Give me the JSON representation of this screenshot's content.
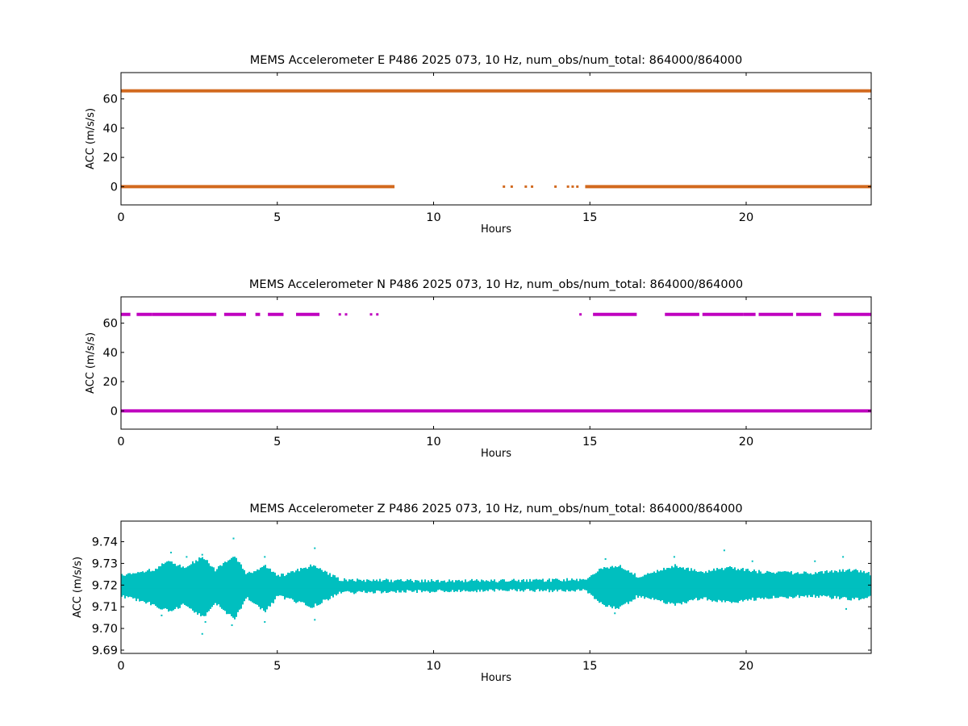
{
  "chart_data": [
    {
      "type": "scatter",
      "title": "MEMS Accelerometer E P486 2025 073, 10 Hz, num_obs/num_total: 864000/864000",
      "xlabel": "Hours",
      "ylabel": "ACC (m/s/s)",
      "xlim": [
        0,
        24
      ],
      "ylim": [
        -12.5,
        78
      ],
      "xticks": [
        0,
        5,
        10,
        15,
        20
      ],
      "yticks": [
        0,
        20,
        40,
        60
      ],
      "ytick_labels": [
        "0",
        "20",
        "40",
        "60"
      ],
      "grid": false,
      "color": "#d2691e",
      "series": [
        {
          "level": 65.5,
          "segments": [
            [
              0,
              24
            ]
          ],
          "dots": []
        },
        {
          "level": 0.0,
          "segments": [
            [
              0,
              8.75
            ],
            [
              14.85,
              24
            ]
          ],
          "dots": [
            12.25,
            12.5,
            12.95,
            13.15,
            13.9,
            14.3,
            14.45,
            14.6
          ]
        }
      ]
    },
    {
      "type": "scatter",
      "title": "MEMS Accelerometer N P486 2025 073, 10 Hz, num_obs/num_total: 864000/864000",
      "xlabel": "Hours",
      "ylabel": "ACC (m/s/s)",
      "xlim": [
        0,
        24
      ],
      "ylim": [
        -12.5,
        78
      ],
      "xticks": [
        0,
        5,
        10,
        15,
        20
      ],
      "yticks": [
        0,
        20,
        40,
        60
      ],
      "ytick_labels": [
        "0",
        "20",
        "40",
        "60"
      ],
      "grid": false,
      "color": "#bf00bf",
      "series": [
        {
          "level": 66.0,
          "segments": [
            [
              0,
              0.3
            ],
            [
              0.5,
              1.0
            ],
            [
              1.0,
              2.0
            ],
            [
              2.0,
              3.05
            ],
            [
              3.3,
              4.0
            ],
            [
              4.3,
              4.45
            ],
            [
              4.7,
              5.2
            ],
            [
              5.6,
              6.35
            ],
            [
              15.1,
              16.5
            ],
            [
              17.4,
              18.5
            ],
            [
              18.6,
              19.9
            ],
            [
              19.9,
              20.3
            ],
            [
              20.4,
              21.5
            ],
            [
              21.6,
              22.4
            ],
            [
              22.8,
              24
            ]
          ],
          "dots": [
            7.0,
            7.2,
            8.0,
            8.2,
            14.7
          ]
        },
        {
          "level": 0.0,
          "segments": [
            [
              0,
              24
            ]
          ],
          "dots": []
        }
      ]
    },
    {
      "type": "scatter",
      "title": "MEMS Accelerometer Z P486 2025 073, 10 Hz, num_obs/num_total: 864000/864000",
      "xlabel": "Hours",
      "ylabel": "ACC (m/s/s)",
      "xlim": [
        0,
        24
      ],
      "ylim": [
        9.6885,
        9.7495
      ],
      "xticks": [
        0,
        5,
        10,
        15,
        20
      ],
      "yticks": [
        9.69,
        9.7,
        9.71,
        9.72,
        9.73,
        9.74
      ],
      "ytick_labels": [
        "9.69",
        "9.70",
        "9.71",
        "9.72",
        "9.73",
        "9.74"
      ],
      "grid": false,
      "color": "#00bfbf",
      "baseline": 9.7195,
      "envelope": [
        {
          "x": 0.0,
          "lo": 9.715,
          "hi": 9.7245
        },
        {
          "x": 1.0,
          "lo": 9.711,
          "hi": 9.727
        },
        {
          "x": 1.5,
          "lo": 9.708,
          "hi": 9.731
        },
        {
          "x": 2.0,
          "lo": 9.711,
          "hi": 9.728
        },
        {
          "x": 2.6,
          "lo": 9.705,
          "hi": 9.733
        },
        {
          "x": 3.0,
          "lo": 9.712,
          "hi": 9.727
        },
        {
          "x": 3.6,
          "lo": 9.704,
          "hi": 9.734
        },
        {
          "x": 4.0,
          "lo": 9.714,
          "hi": 9.725
        },
        {
          "x": 4.6,
          "lo": 9.708,
          "hi": 9.729
        },
        {
          "x": 5.0,
          "lo": 9.715,
          "hi": 9.724
        },
        {
          "x": 6.1,
          "lo": 9.71,
          "hi": 9.729
        },
        {
          "x": 7.0,
          "lo": 9.7165,
          "hi": 9.7225
        },
        {
          "x": 9.0,
          "lo": 9.717,
          "hi": 9.722
        },
        {
          "x": 12.0,
          "lo": 9.7175,
          "hi": 9.722
        },
        {
          "x": 14.8,
          "lo": 9.7175,
          "hi": 9.7225
        },
        {
          "x": 15.4,
          "lo": 9.711,
          "hi": 9.728
        },
        {
          "x": 15.9,
          "lo": 9.709,
          "hi": 9.729
        },
        {
          "x": 16.5,
          "lo": 9.715,
          "hi": 9.724
        },
        {
          "x": 17.7,
          "lo": 9.711,
          "hi": 9.729
        },
        {
          "x": 18.5,
          "lo": 9.714,
          "hi": 9.726
        },
        {
          "x": 19.4,
          "lo": 9.712,
          "hi": 9.728
        },
        {
          "x": 20.5,
          "lo": 9.714,
          "hi": 9.726
        },
        {
          "x": 22.0,
          "lo": 9.715,
          "hi": 9.7255
        },
        {
          "x": 23.5,
          "lo": 9.7135,
          "hi": 9.727
        },
        {
          "x": 24.0,
          "lo": 9.715,
          "hi": 9.725
        }
      ],
      "outliers": [
        {
          "x": 1.6,
          "y": 9.735
        },
        {
          "x": 1.3,
          "y": 9.706
        },
        {
          "x": 2.1,
          "y": 9.733
        },
        {
          "x": 2.6,
          "y": 9.734
        },
        {
          "x": 2.6,
          "y": 9.6975
        },
        {
          "x": 2.7,
          "y": 9.703
        },
        {
          "x": 3.6,
          "y": 9.7415
        },
        {
          "x": 3.55,
          "y": 9.7015
        },
        {
          "x": 4.6,
          "y": 9.733
        },
        {
          "x": 4.6,
          "y": 9.703
        },
        {
          "x": 6.2,
          "y": 9.737
        },
        {
          "x": 6.2,
          "y": 9.704
        },
        {
          "x": 15.5,
          "y": 9.732
        },
        {
          "x": 15.8,
          "y": 9.707
        },
        {
          "x": 17.7,
          "y": 9.733
        },
        {
          "x": 19.3,
          "y": 9.736
        },
        {
          "x": 20.2,
          "y": 9.731
        },
        {
          "x": 22.2,
          "y": 9.731
        },
        {
          "x": 23.1,
          "y": 9.733
        },
        {
          "x": 23.2,
          "y": 9.709
        }
      ]
    }
  ]
}
